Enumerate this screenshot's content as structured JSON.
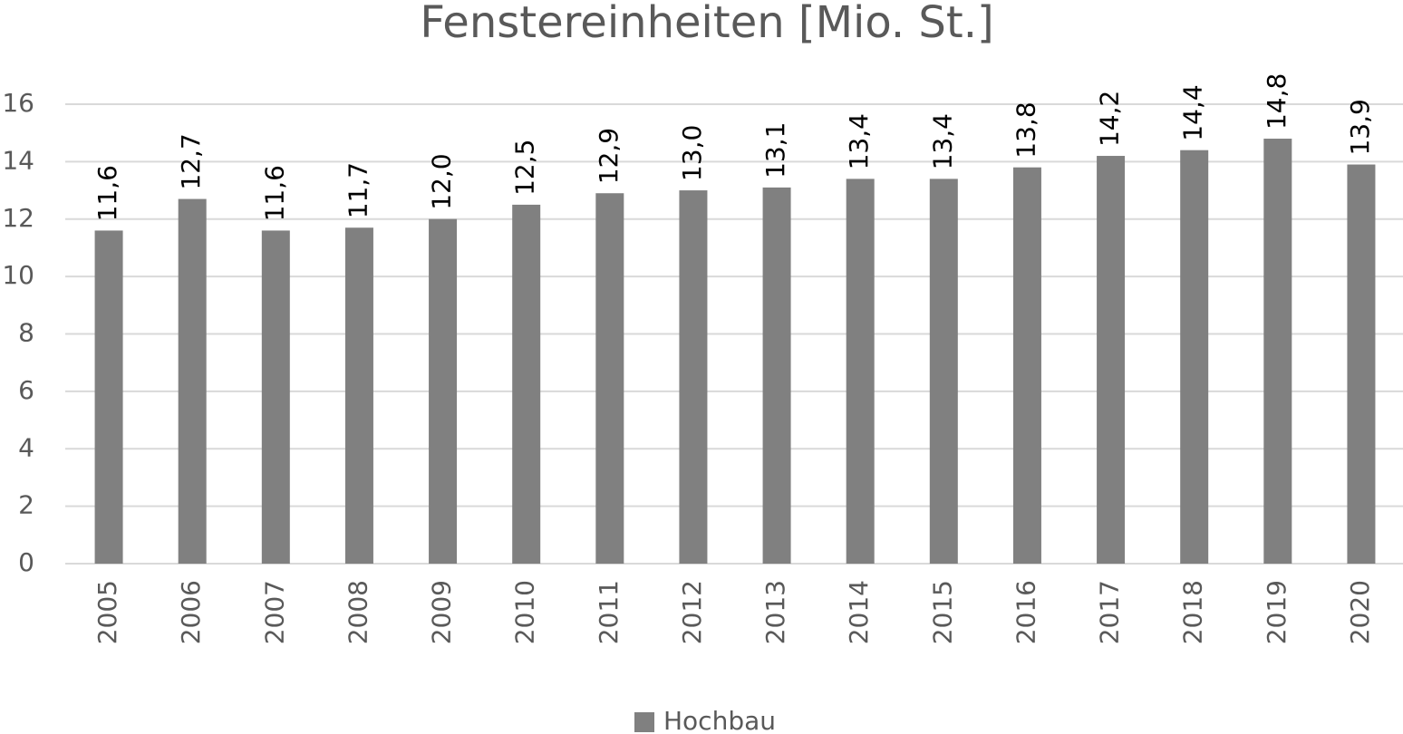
{
  "chart_data": {
    "type": "bar",
    "title": "Fenstereinheiten [Mio. St.]",
    "categories": [
      "2005",
      "2006",
      "2007",
      "2008",
      "2009",
      "2010",
      "2011",
      "2012",
      "2013",
      "2014",
      "2015",
      "2016",
      "2017",
      "2018",
      "2019",
      "2020"
    ],
    "series": [
      {
        "name": "Hochbau",
        "color": "#808080",
        "values": [
          11.6,
          12.7,
          11.6,
          11.7,
          12.0,
          12.5,
          12.9,
          13.0,
          13.1,
          13.4,
          13.4,
          13.8,
          14.2,
          14.4,
          14.8,
          13.9
        ],
        "value_labels": [
          "11,6",
          "12,7",
          "11,6",
          "11,7",
          "12,0",
          "12,5",
          "12,9",
          "13,0",
          "13,1",
          "13,4",
          "13,4",
          "13,8",
          "14,2",
          "14,4",
          "14,8",
          "13,9"
        ]
      }
    ],
    "ylim": [
      0,
      16
    ],
    "yticks": [
      0,
      2,
      4,
      6,
      8,
      10,
      12,
      14,
      16
    ],
    "grid": true,
    "legend": "bottom"
  }
}
